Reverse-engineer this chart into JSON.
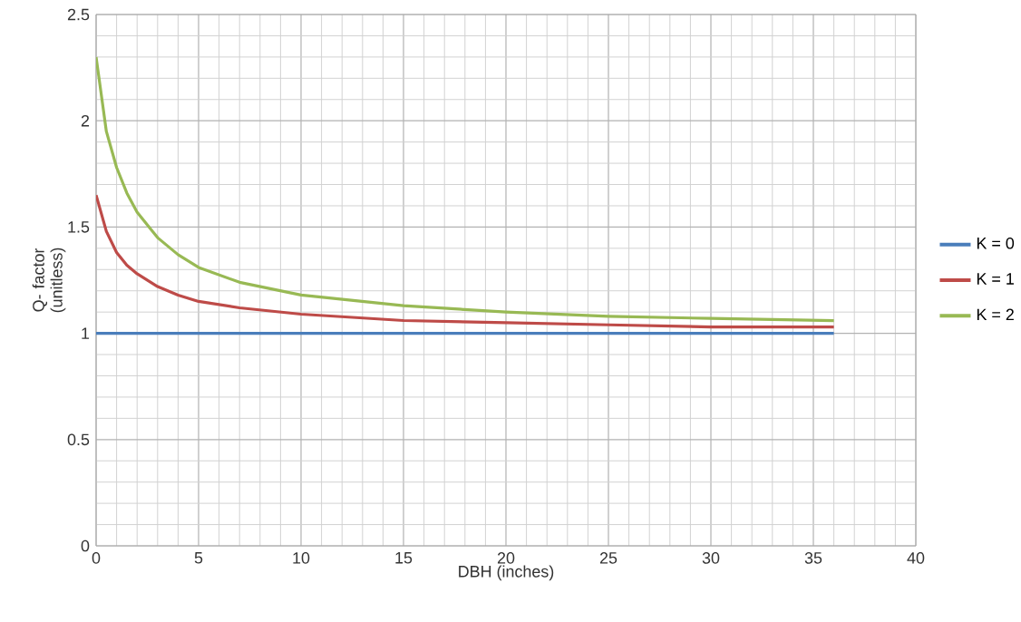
{
  "chart_data": {
    "type": "line",
    "xlabel": "DBH (inches)",
    "ylabel": "Q- factor (unitless)",
    "xlim": [
      0,
      40
    ],
    "xticks": [
      0,
      5,
      10,
      15,
      20,
      25,
      30,
      35,
      40
    ],
    "ylim": [
      0,
      2.5
    ],
    "yticks": [
      0,
      0.5,
      1,
      1.5,
      2,
      2.5
    ],
    "grid": true,
    "legend": "right",
    "marker": "none",
    "line_style": "solid",
    "series": [
      {
        "name": "K = 0",
        "color": "#4a7ebb",
        "x": [
          0,
          36
        ],
        "values": [
          1,
          1
        ]
      },
      {
        "name": "K = 1",
        "color": "#be4b48",
        "x": [
          0,
          0.5,
          1,
          1.5,
          2,
          3,
          4,
          5,
          7,
          10,
          15,
          20,
          25,
          30,
          36
        ],
        "values": [
          1.65,
          1.48,
          1.38,
          1.32,
          1.28,
          1.22,
          1.18,
          1.15,
          1.12,
          1.09,
          1.06,
          1.05,
          1.04,
          1.03,
          1.03
        ]
      },
      {
        "name": "K = 2",
        "color": "#98b954",
        "x": [
          0,
          0.5,
          1,
          1.5,
          2,
          3,
          4,
          5,
          7,
          10,
          15,
          20,
          25,
          30,
          36
        ],
        "values": [
          2.3,
          1.95,
          1.78,
          1.66,
          1.57,
          1.45,
          1.37,
          1.31,
          1.24,
          1.18,
          1.13,
          1.1,
          1.08,
          1.07,
          1.06
        ]
      }
    ]
  }
}
